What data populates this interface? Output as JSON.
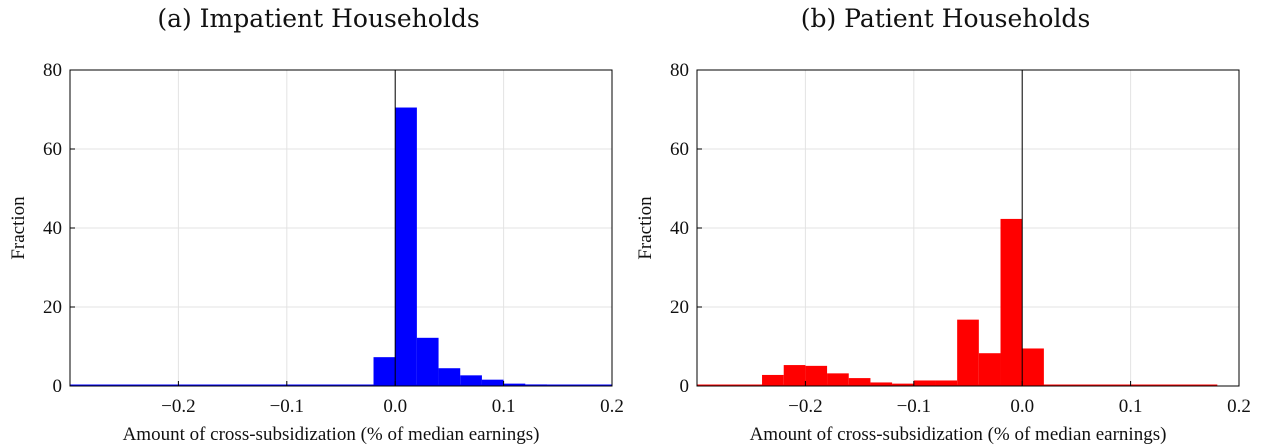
{
  "chart_data": [
    {
      "type": "bar",
      "title": "(a) Impatient Households",
      "xlabel": "Amount of cross-subsidization (% of median earnings)",
      "ylabel": "Fraction",
      "xlim": [
        -0.3,
        0.2
      ],
      "ylim": [
        0,
        80
      ],
      "xticks": [
        -0.2,
        -0.1,
        0.0,
        0.1,
        0.2
      ],
      "xtick_labels": [
        "−0.2",
        "−0.1",
        "0.0",
        "0.1",
        "0.2"
      ],
      "yticks": [
        0,
        20,
        40,
        60,
        80
      ],
      "ytick_labels": [
        "0",
        "20",
        "40",
        "60",
        "80"
      ],
      "grid": true,
      "vline_x": 0.0,
      "color": "#0000ff",
      "bins": [
        {
          "x0": -0.02,
          "x1": 0.0,
          "value": 7.3
        },
        {
          "x0": 0.0,
          "x1": 0.02,
          "value": 70.5
        },
        {
          "x0": 0.02,
          "x1": 0.04,
          "value": 12.2
        },
        {
          "x0": 0.04,
          "x1": 0.06,
          "value": 4.5
        },
        {
          "x0": 0.06,
          "x1": 0.08,
          "value": 2.7
        },
        {
          "x0": 0.08,
          "x1": 0.1,
          "value": 1.6
        },
        {
          "x0": 0.1,
          "x1": 0.12,
          "value": 0.6
        },
        {
          "x0": 0.12,
          "x1": 0.14,
          "value": 0.4
        },
        {
          "x0": 0.14,
          "x1": 0.16,
          "value": 0.2
        },
        {
          "x0": 0.16,
          "x1": 0.18,
          "value": 0.1
        },
        {
          "x0": 0.18,
          "x1": 0.2,
          "value": 0.1
        }
      ],
      "baseline_range": [
        -0.3,
        0.2
      ]
    },
    {
      "type": "bar",
      "title": "(b) Patient Households",
      "xlabel": "Amount of cross-subsidization (% of median earnings)",
      "ylabel": "Fraction",
      "xlim": [
        -0.3,
        0.2
      ],
      "ylim": [
        0,
        80
      ],
      "xticks": [
        -0.2,
        -0.1,
        0.0,
        0.1,
        0.2
      ],
      "xtick_labels": [
        "−0.2",
        "−0.1",
        "0.0",
        "0.1",
        "0.2"
      ],
      "yticks": [
        0,
        20,
        40,
        60,
        80
      ],
      "ytick_labels": [
        "0",
        "20",
        "40",
        "60",
        "80"
      ],
      "grid": true,
      "vline_x": 0.0,
      "color": "#ff0000",
      "bins": [
        {
          "x0": -0.24,
          "x1": -0.22,
          "value": 2.8
        },
        {
          "x0": -0.22,
          "x1": -0.2,
          "value": 5.3
        },
        {
          "x0": -0.2,
          "x1": -0.18,
          "value": 5.1
        },
        {
          "x0": -0.18,
          "x1": -0.16,
          "value": 3.2
        },
        {
          "x0": -0.16,
          "x1": -0.14,
          "value": 2.0
        },
        {
          "x0": -0.14,
          "x1": -0.12,
          "value": 0.9
        },
        {
          "x0": -0.12,
          "x1": -0.1,
          "value": 0.6
        },
        {
          "x0": -0.1,
          "x1": -0.08,
          "value": 1.4
        },
        {
          "x0": -0.08,
          "x1": -0.06,
          "value": 1.4
        },
        {
          "x0": -0.06,
          "x1": -0.04,
          "value": 16.8
        },
        {
          "x0": -0.04,
          "x1": -0.02,
          "value": 8.3
        },
        {
          "x0": -0.02,
          "x1": 0.0,
          "value": 42.3
        },
        {
          "x0": 0.0,
          "x1": 0.02,
          "value": 9.5
        }
      ],
      "baseline_range": [
        -0.3,
        0.18
      ]
    }
  ]
}
